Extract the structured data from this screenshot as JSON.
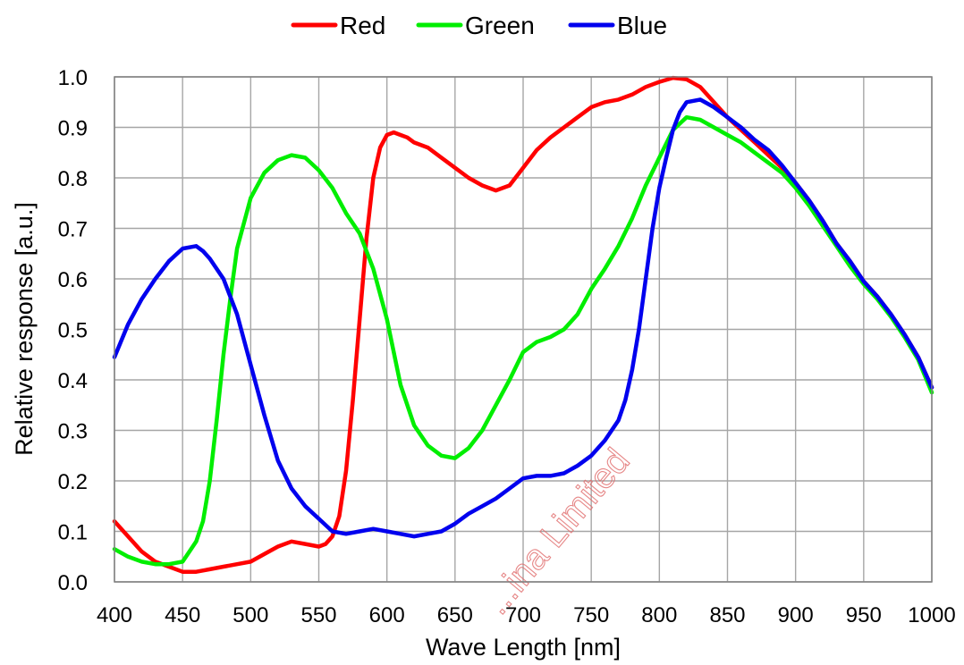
{
  "chart_data": {
    "type": "line",
    "title": "",
    "xlabel": "Wave Length [nm]",
    "ylabel": "Relative response [a.u.]",
    "xlim": [
      400,
      1000
    ],
    "ylim": [
      0,
      1.0
    ],
    "x_ticks": [
      400,
      450,
      500,
      550,
      600,
      650,
      700,
      750,
      800,
      850,
      900,
      950,
      1000
    ],
    "y_ticks": [
      0.0,
      0.1,
      0.2,
      0.3,
      0.4,
      0.5,
      0.6,
      0.7,
      0.8,
      0.9,
      1.0
    ],
    "x_tick_labels": [
      "400",
      "450",
      "500",
      "550",
      "600",
      "650",
      "700",
      "750",
      "800",
      "850",
      "900",
      "950",
      "1000"
    ],
    "y_tick_labels": [
      "0.0",
      "0.1",
      "0.2",
      "0.3",
      "0.4",
      "0.5",
      "0.6",
      "0.7",
      "0.8",
      "0.9",
      "1.0"
    ],
    "grid": true,
    "legend_position": "top-center",
    "watermark": "...ina Limited",
    "series": [
      {
        "name": "Red",
        "color": "#ff0000",
        "points": [
          [
            400,
            0.12
          ],
          [
            410,
            0.09
          ],
          [
            420,
            0.06
          ],
          [
            430,
            0.04
          ],
          [
            440,
            0.03
          ],
          [
            450,
            0.02
          ],
          [
            460,
            0.02
          ],
          [
            470,
            0.025
          ],
          [
            480,
            0.03
          ],
          [
            490,
            0.035
          ],
          [
            500,
            0.04
          ],
          [
            510,
            0.055
          ],
          [
            520,
            0.07
          ],
          [
            530,
            0.08
          ],
          [
            540,
            0.075
          ],
          [
            550,
            0.07
          ],
          [
            555,
            0.075
          ],
          [
            560,
            0.09
          ],
          [
            565,
            0.13
          ],
          [
            570,
            0.22
          ],
          [
            575,
            0.36
          ],
          [
            580,
            0.52
          ],
          [
            585,
            0.68
          ],
          [
            590,
            0.8
          ],
          [
            595,
            0.86
          ],
          [
            600,
            0.885
          ],
          [
            605,
            0.89
          ],
          [
            610,
            0.885
          ],
          [
            615,
            0.88
          ],
          [
            620,
            0.87
          ],
          [
            630,
            0.86
          ],
          [
            640,
            0.84
          ],
          [
            650,
            0.82
          ],
          [
            660,
            0.8
          ],
          [
            670,
            0.785
          ],
          [
            680,
            0.775
          ],
          [
            690,
            0.785
          ],
          [
            700,
            0.82
          ],
          [
            710,
            0.855
          ],
          [
            720,
            0.88
          ],
          [
            730,
            0.9
          ],
          [
            740,
            0.92
          ],
          [
            750,
            0.94
          ],
          [
            760,
            0.95
          ],
          [
            770,
            0.955
          ],
          [
            780,
            0.965
          ],
          [
            790,
            0.98
          ],
          [
            800,
            0.99
          ],
          [
            810,
            0.998
          ],
          [
            820,
            0.995
          ],
          [
            830,
            0.98
          ],
          [
            840,
            0.95
          ],
          [
            850,
            0.92
          ],
          [
            860,
            0.895
          ],
          [
            870,
            0.87
          ],
          [
            880,
            0.845
          ],
          [
            890,
            0.82
          ],
          [
            900,
            0.79
          ],
          [
            910,
            0.755
          ],
          [
            920,
            0.715
          ],
          [
            930,
            0.67
          ],
          [
            940,
            0.635
          ],
          [
            950,
            0.595
          ],
          [
            960,
            0.565
          ],
          [
            970,
            0.53
          ],
          [
            980,
            0.49
          ],
          [
            990,
            0.445
          ],
          [
            1000,
            0.385
          ]
        ]
      },
      {
        "name": "Green",
        "color": "#00ee00",
        "points": [
          [
            400,
            0.065
          ],
          [
            410,
            0.05
          ],
          [
            420,
            0.04
          ],
          [
            430,
            0.035
          ],
          [
            440,
            0.035
          ],
          [
            450,
            0.04
          ],
          [
            455,
            0.06
          ],
          [
            460,
            0.08
          ],
          [
            465,
            0.12
          ],
          [
            470,
            0.2
          ],
          [
            475,
            0.32
          ],
          [
            480,
            0.45
          ],
          [
            485,
            0.56
          ],
          [
            490,
            0.66
          ],
          [
            500,
            0.76
          ],
          [
            510,
            0.81
          ],
          [
            520,
            0.835
          ],
          [
            530,
            0.845
          ],
          [
            540,
            0.84
          ],
          [
            550,
            0.815
          ],
          [
            560,
            0.78
          ],
          [
            570,
            0.73
          ],
          [
            580,
            0.69
          ],
          [
            590,
            0.62
          ],
          [
            600,
            0.52
          ],
          [
            610,
            0.39
          ],
          [
            620,
            0.31
          ],
          [
            630,
            0.27
          ],
          [
            640,
            0.25
          ],
          [
            650,
            0.245
          ],
          [
            660,
            0.265
          ],
          [
            670,
            0.3
          ],
          [
            680,
            0.35
          ],
          [
            690,
            0.4
          ],
          [
            700,
            0.455
          ],
          [
            710,
            0.475
          ],
          [
            720,
            0.485
          ],
          [
            730,
            0.5
          ],
          [
            740,
            0.53
          ],
          [
            750,
            0.58
          ],
          [
            760,
            0.62
          ],
          [
            770,
            0.665
          ],
          [
            780,
            0.72
          ],
          [
            790,
            0.785
          ],
          [
            800,
            0.84
          ],
          [
            810,
            0.895
          ],
          [
            820,
            0.92
          ],
          [
            830,
            0.915
          ],
          [
            840,
            0.9
          ],
          [
            850,
            0.885
          ],
          [
            860,
            0.87
          ],
          [
            870,
            0.85
          ],
          [
            880,
            0.83
          ],
          [
            890,
            0.81
          ],
          [
            900,
            0.78
          ],
          [
            910,
            0.745
          ],
          [
            920,
            0.705
          ],
          [
            930,
            0.665
          ],
          [
            940,
            0.625
          ],
          [
            950,
            0.59
          ],
          [
            960,
            0.56
          ],
          [
            970,
            0.525
          ],
          [
            980,
            0.485
          ],
          [
            990,
            0.44
          ],
          [
            1000,
            0.375
          ]
        ]
      },
      {
        "name": "Blue",
        "color": "#0000ee",
        "points": [
          [
            400,
            0.445
          ],
          [
            410,
            0.51
          ],
          [
            420,
            0.56
          ],
          [
            430,
            0.6
          ],
          [
            440,
            0.635
          ],
          [
            450,
            0.66
          ],
          [
            460,
            0.665
          ],
          [
            465,
            0.655
          ],
          [
            470,
            0.64
          ],
          [
            480,
            0.6
          ],
          [
            490,
            0.53
          ],
          [
            500,
            0.43
          ],
          [
            510,
            0.33
          ],
          [
            520,
            0.24
          ],
          [
            530,
            0.185
          ],
          [
            540,
            0.15
          ],
          [
            550,
            0.125
          ],
          [
            560,
            0.1
          ],
          [
            570,
            0.095
          ],
          [
            580,
            0.1
          ],
          [
            590,
            0.105
          ],
          [
            600,
            0.1
          ],
          [
            610,
            0.095
          ],
          [
            620,
            0.09
          ],
          [
            630,
            0.095
          ],
          [
            640,
            0.1
          ],
          [
            650,
            0.115
          ],
          [
            660,
            0.135
          ],
          [
            670,
            0.15
          ],
          [
            680,
            0.165
          ],
          [
            690,
            0.185
          ],
          [
            700,
            0.205
          ],
          [
            710,
            0.21
          ],
          [
            720,
            0.21
          ],
          [
            730,
            0.215
          ],
          [
            740,
            0.23
          ],
          [
            750,
            0.25
          ],
          [
            760,
            0.28
          ],
          [
            770,
            0.32
          ],
          [
            775,
            0.36
          ],
          [
            780,
            0.42
          ],
          [
            785,
            0.5
          ],
          [
            790,
            0.6
          ],
          [
            795,
            0.7
          ],
          [
            800,
            0.78
          ],
          [
            805,
            0.84
          ],
          [
            810,
            0.895
          ],
          [
            815,
            0.93
          ],
          [
            820,
            0.95
          ],
          [
            830,
            0.955
          ],
          [
            840,
            0.94
          ],
          [
            850,
            0.92
          ],
          [
            860,
            0.9
          ],
          [
            870,
            0.875
          ],
          [
            880,
            0.855
          ],
          [
            890,
            0.825
          ],
          [
            900,
            0.79
          ],
          [
            910,
            0.755
          ],
          [
            920,
            0.715
          ],
          [
            930,
            0.67
          ],
          [
            940,
            0.635
          ],
          [
            950,
            0.595
          ],
          [
            960,
            0.565
          ],
          [
            970,
            0.53
          ],
          [
            980,
            0.49
          ],
          [
            990,
            0.445
          ],
          [
            1000,
            0.385
          ]
        ]
      }
    ]
  }
}
